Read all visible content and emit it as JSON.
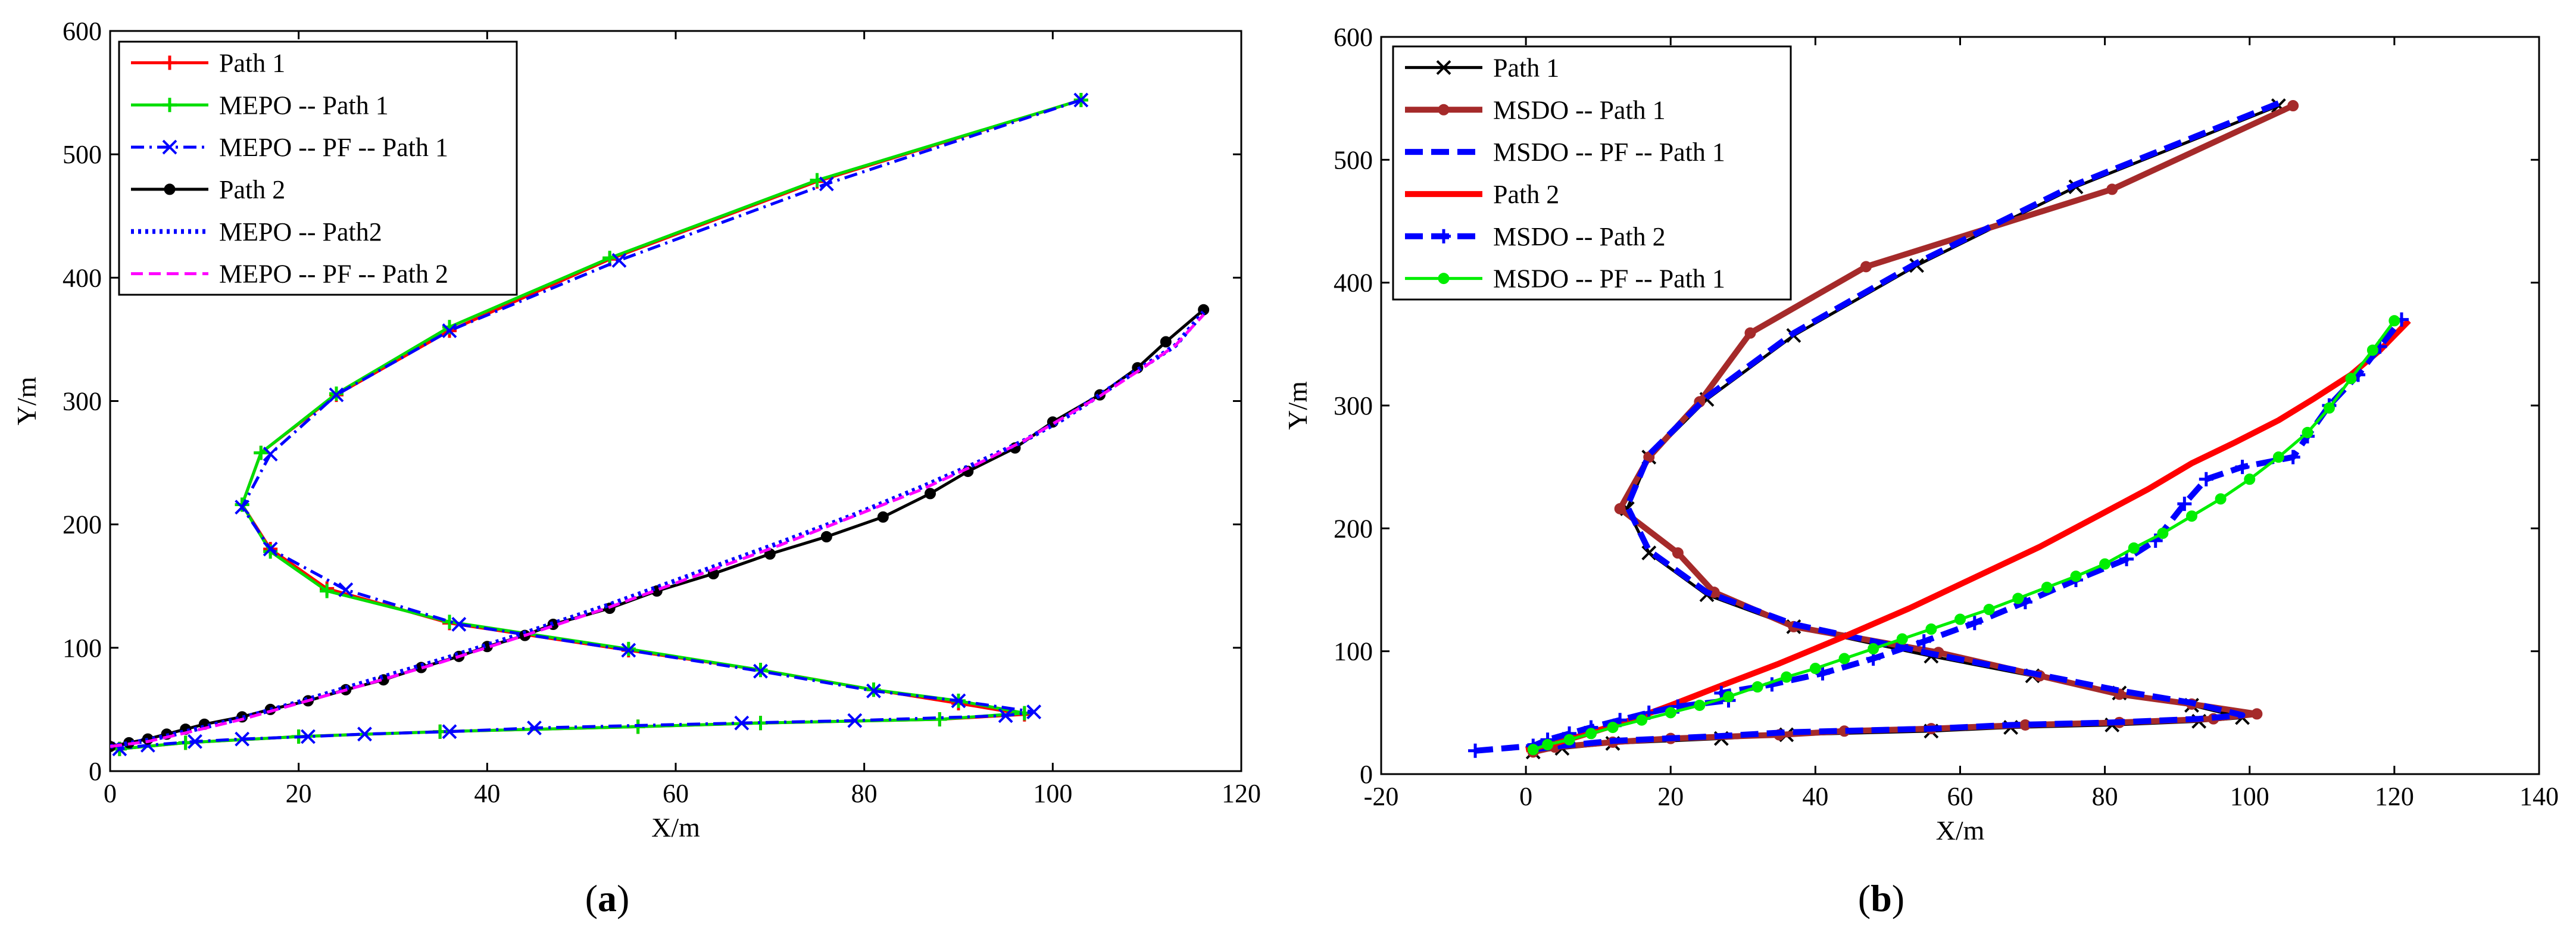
{
  "chart_data": [
    {
      "type": "line",
      "panel_label": "a",
      "xlabel": "X/m",
      "ylabel": "Y/m",
      "xlim": [
        0,
        120
      ],
      "ylim": [
        0,
        600
      ],
      "xticks": [
        0,
        20,
        40,
        60,
        80,
        100,
        120
      ],
      "yticks": [
        0,
        100,
        200,
        300,
        400,
        500,
        600
      ],
      "legend_position": "top-left",
      "series": [
        {
          "name": "Path 1",
          "color": "#ff0000",
          "style": "solid",
          "marker": "plus",
          "x": [
            103,
            75,
            53,
            36,
            24,
            16,
            14,
            17,
            23,
            36,
            55,
            69,
            81,
            90,
            97,
            88,
            69,
            56,
            35,
            20,
            8,
            1
          ],
          "y": [
            544,
            478,
            415,
            357,
            305,
            258,
            216,
            180,
            148,
            120,
            98,
            82,
            66,
            55,
            46,
            42,
            39,
            36,
            32,
            28,
            23,
            18
          ]
        },
        {
          "name": "MEPO -- Path 1",
          "color": "#00dd00",
          "style": "solid",
          "marker": "plus",
          "x": [
            103,
            75,
            53,
            36,
            24,
            16,
            14,
            17,
            23,
            36,
            55,
            69,
            81,
            90,
            97,
            88,
            69,
            56,
            35,
            20,
            8,
            1
          ],
          "y": [
            544,
            479,
            416,
            360,
            306,
            258,
            216,
            178,
            146,
            121,
            99,
            82,
            66,
            57,
            47,
            42,
            39,
            36,
            32,
            28,
            23,
            18
          ]
        },
        {
          "name": "MEPO -- PF -- Path 1",
          "color": "#0000ff",
          "style": "dashdot",
          "marker": "x",
          "x": [
            103,
            76,
            54,
            36,
            24,
            17,
            14,
            17,
            25,
            37,
            55,
            69,
            81,
            90,
            98,
            95,
            79,
            67,
            45,
            36,
            27,
            21,
            14,
            9,
            4,
            1
          ],
          "y": [
            544,
            476,
            414,
            357,
            305,
            257,
            214,
            180,
            147,
            119,
            98,
            81,
            65,
            57,
            48,
            45,
            41,
            39,
            35,
            32,
            30,
            28,
            26,
            24,
            21,
            18
          ]
        },
        {
          "name": "Path 2",
          "color": "#000000",
          "style": "solid",
          "marker": "dot",
          "x": [
            0,
            2,
            4,
            6,
            8,
            10,
            14,
            17,
            21,
            25,
            29,
            33,
            37,
            40,
            44,
            47,
            53,
            58,
            64,
            70,
            76,
            82,
            87,
            91,
            96,
            100,
            105,
            109,
            112,
            116
          ],
          "y": [
            20,
            23,
            26,
            30,
            34,
            38,
            44,
            50,
            57,
            66,
            74,
            84,
            93,
            101,
            110,
            119,
            132,
            146,
            160,
            176,
            190,
            206,
            225,
            243,
            262,
            283,
            305,
            327,
            348,
            374
          ]
        },
        {
          "name": "MEPO -- Path2",
          "color": "#0000ff",
          "style": "dotted",
          "marker": "none",
          "x": [
            0,
            4,
            8,
            14,
            20,
            27,
            35,
            44,
            53,
            62,
            71,
            79,
            86,
            92,
            97,
            101,
            105,
            109,
            113,
            116
          ],
          "y": [
            20,
            25,
            32,
            43,
            56,
            72,
            90,
            112,
            135,
            160,
            185,
            208,
            230,
            250,
            268,
            285,
            305,
            325,
            345,
            372
          ]
        },
        {
          "name": "MEPO -- PF -- Path 2",
          "color": "#ff00ff",
          "style": "dashed",
          "marker": "none",
          "x": [
            0,
            4,
            8,
            14,
            20,
            27,
            35,
            44,
            53,
            62,
            71,
            79,
            86,
            92,
            97,
            101,
            105,
            109,
            113,
            116
          ],
          "y": [
            20,
            24,
            31,
            42,
            55,
            70,
            88,
            110,
            133,
            158,
            183,
            207,
            228,
            249,
            268,
            286,
            304,
            324,
            345,
            370
          ]
        }
      ]
    },
    {
      "type": "line",
      "panel_label": "b",
      "xlabel": "X/m",
      "ylabel": "Y/m",
      "xlim": [
        -20,
        140
      ],
      "ylim": [
        0,
        600
      ],
      "xticks": [
        -20,
        0,
        20,
        40,
        60,
        80,
        100,
        120,
        140
      ],
      "yticks": [
        0,
        100,
        200,
        300,
        400,
        500,
        600
      ],
      "legend_position": "top-left",
      "series": [
        {
          "name": "Path 1",
          "color": "#000000",
          "style": "solid",
          "marker": "x",
          "x": [
            104,
            76,
            54,
            37,
            25,
            17,
            14,
            17,
            25,
            37,
            56,
            70,
            82,
            92,
            99,
            93,
            81,
            67,
            56,
            36,
            27,
            12,
            5,
            1
          ],
          "y": [
            544,
            478,
            414,
            357,
            305,
            258,
            216,
            180,
            146,
            120,
            96,
            80,
            66,
            56,
            46,
            43,
            40,
            38,
            35,
            32,
            29,
            25,
            21,
            18
          ]
        },
        {
          "name": "MSDO -- Path 1",
          "color": "#a52a2a",
          "style": "solid-thick",
          "marker": "dot",
          "x": [
            106,
            81,
            47,
            31,
            24,
            17,
            13,
            21,
            26,
            37,
            57,
            71,
            82,
            92,
            101,
            95,
            82,
            69,
            56,
            44,
            35,
            20,
            12,
            4,
            1
          ],
          "y": [
            544,
            476,
            413,
            359,
            303,
            258,
            216,
            180,
            148,
            120,
            99,
            80,
            65,
            57,
            49,
            45,
            42,
            40,
            37,
            35,
            32,
            29,
            26,
            22,
            18
          ]
        },
        {
          "name": "MSDO -- PF -- Path 1",
          "color": "#0000ff",
          "style": "dashed-thick",
          "marker": "none",
          "x": [
            104,
            76,
            54,
            37,
            25,
            17,
            14,
            17,
            25,
            37,
            56,
            70,
            82,
            92,
            99,
            93,
            81,
            67,
            56,
            36,
            27,
            12,
            5,
            1
          ],
          "y": [
            546,
            480,
            416,
            359,
            307,
            260,
            218,
            182,
            148,
            122,
            98,
            82,
            68,
            58,
            48,
            45,
            42,
            40,
            37,
            34,
            31,
            27,
            23,
            20
          ]
        },
        {
          "name": "Path 2",
          "color": "#ff0000",
          "style": "solid-thick",
          "marker": "none",
          "x": [
            0,
            4,
            8,
            14,
            20,
            27,
            35,
            44,
            53,
            62,
            71,
            79,
            86,
            92,
            98,
            104,
            109,
            114,
            118,
            122
          ],
          "y": [
            20,
            25,
            32,
            43,
            56,
            72,
            90,
            112,
            135,
            160,
            185,
            210,
            232,
            253,
            270,
            288,
            306,
            325,
            345,
            369
          ]
        },
        {
          "name": "MSDO -- Path 2",
          "color": "#0000ff",
          "style": "dashed-thick",
          "marker": "plus",
          "x": [
            -7,
            1,
            3,
            6,
            9,
            13,
            17,
            21,
            28,
            27,
            34,
            41,
            48,
            55,
            62,
            69,
            76,
            83,
            87,
            91,
            94,
            99,
            106,
            108,
            111,
            115,
            118,
            121
          ],
          "y": [
            19,
            23,
            28,
            33,
            38,
            44,
            50,
            55,
            60,
            66,
            73,
            82,
            94,
            108,
            123,
            140,
            158,
            175,
            190,
            220,
            240,
            250,
            258,
            275,
            300,
            325,
            348,
            370
          ]
        },
        {
          "name": "MSDO -- PF -- Path 1",
          "color": "#00ee00",
          "style": "solid",
          "marker": "dot",
          "x": [
            1,
            3,
            6,
            9,
            12,
            16,
            20,
            24,
            28,
            32,
            36,
            40,
            44,
            48,
            52,
            56,
            60,
            64,
            68,
            72,
            76,
            80,
            84,
            88,
            92,
            96,
            100,
            104,
            108,
            111,
            114,
            117,
            120
          ],
          "y": [
            20,
            24,
            28,
            33,
            38,
            44,
            50,
            56,
            63,
            71,
            79,
            86,
            94,
            102,
            110,
            118,
            126,
            134,
            143,
            152,
            161,
            171,
            184,
            196,
            210,
            224,
            240,
            258,
            278,
            298,
            322,
            345,
            369
          ]
        }
      ]
    }
  ],
  "captions": [
    "a",
    "b"
  ]
}
